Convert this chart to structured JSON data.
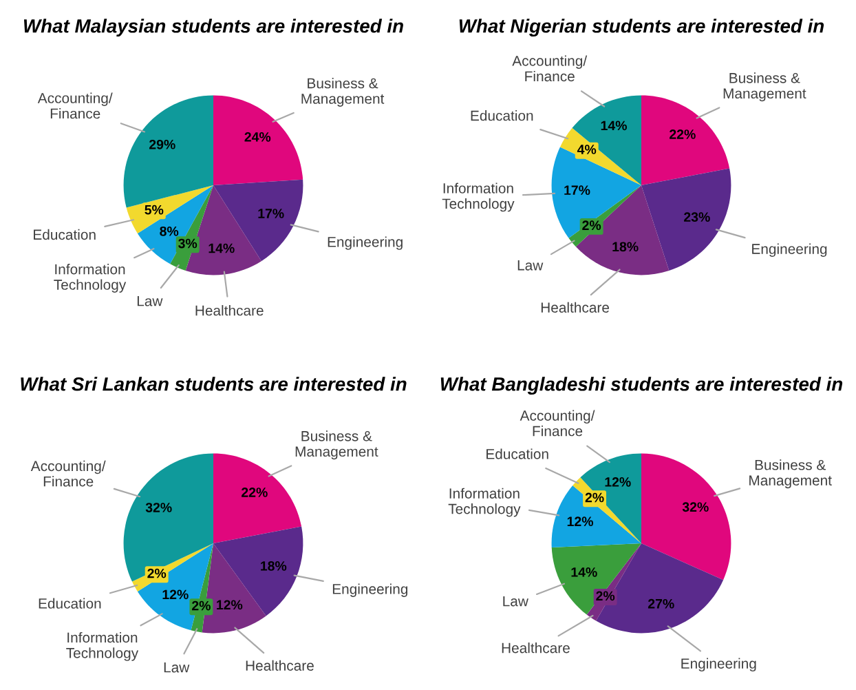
{
  "chart_data": [
    {
      "type": "pie",
      "title": "What Malaysian students are interested in",
      "categories": [
        "Business &\nManagement",
        "Engineering",
        "Healthcare",
        "Law",
        "Information\nTechnology",
        "Education",
        "Accounting/\nFinance"
      ],
      "values": [
        24,
        17,
        14,
        3,
        8,
        5,
        29
      ],
      "value_labels": [
        "24%",
        "17%",
        "14%",
        "3%",
        "8%",
        "5%",
        "29%"
      ],
      "colors": [
        "#e0077d",
        "#5a2a8c",
        "#7a2d84",
        "#3a9e3c",
        "#12a5e2",
        "#f2d92e",
        "#0f9a9b"
      ]
    },
    {
      "type": "pie",
      "title": "What Nigerian students are interested in",
      "categories": [
        "Business &\nManagement",
        "Engineering",
        "Healthcare",
        "Law",
        "Information\nTechnology",
        "Education",
        "Accounting/\nFinance"
      ],
      "values": [
        22,
        23,
        18,
        2,
        17,
        4,
        14
      ],
      "value_labels": [
        "22%",
        "23%",
        "18%",
        "2%",
        "17%",
        "4%",
        "14%"
      ],
      "colors": [
        "#e0077d",
        "#5a2a8c",
        "#7a2d84",
        "#3a9e3c",
        "#12a5e2",
        "#f2d92e",
        "#0f9a9b"
      ]
    },
    {
      "type": "pie",
      "title": "What Sri Lankan students are interested in",
      "categories": [
        "Business &\nManagement",
        "Engineering",
        "Healthcare",
        "Law",
        "Information\nTechnology",
        "Education",
        "Accounting/\nFinance"
      ],
      "values": [
        22,
        18,
        12,
        2,
        12,
        2,
        32
      ],
      "value_labels": [
        "22%",
        "18%",
        "12%",
        "2%",
        "12%",
        "2%",
        "32%"
      ],
      "colors": [
        "#e0077d",
        "#5a2a8c",
        "#7a2d84",
        "#3a9e3c",
        "#12a5e2",
        "#f2d92e",
        "#0f9a9b"
      ]
    },
    {
      "type": "pie",
      "title": "What Bangladeshi students are interested in",
      "categories": [
        "Business &\nManagement",
        "Engineering",
        "Healthcare",
        "Law",
        "Information\nTechnology",
        "Education",
        "Accounting/\nFinance"
      ],
      "values": [
        32,
        27,
        2,
        14,
        12,
        2,
        12
      ],
      "value_labels": [
        "32%",
        "27%",
        "2%",
        "14%",
        "12%",
        "2%",
        "12%"
      ],
      "colors": [
        "#e0077d",
        "#5a2a8c",
        "#7a2d84",
        "#3a9e3c",
        "#12a5e2",
        "#f2d92e",
        "#0f9a9b"
      ]
    }
  ]
}
